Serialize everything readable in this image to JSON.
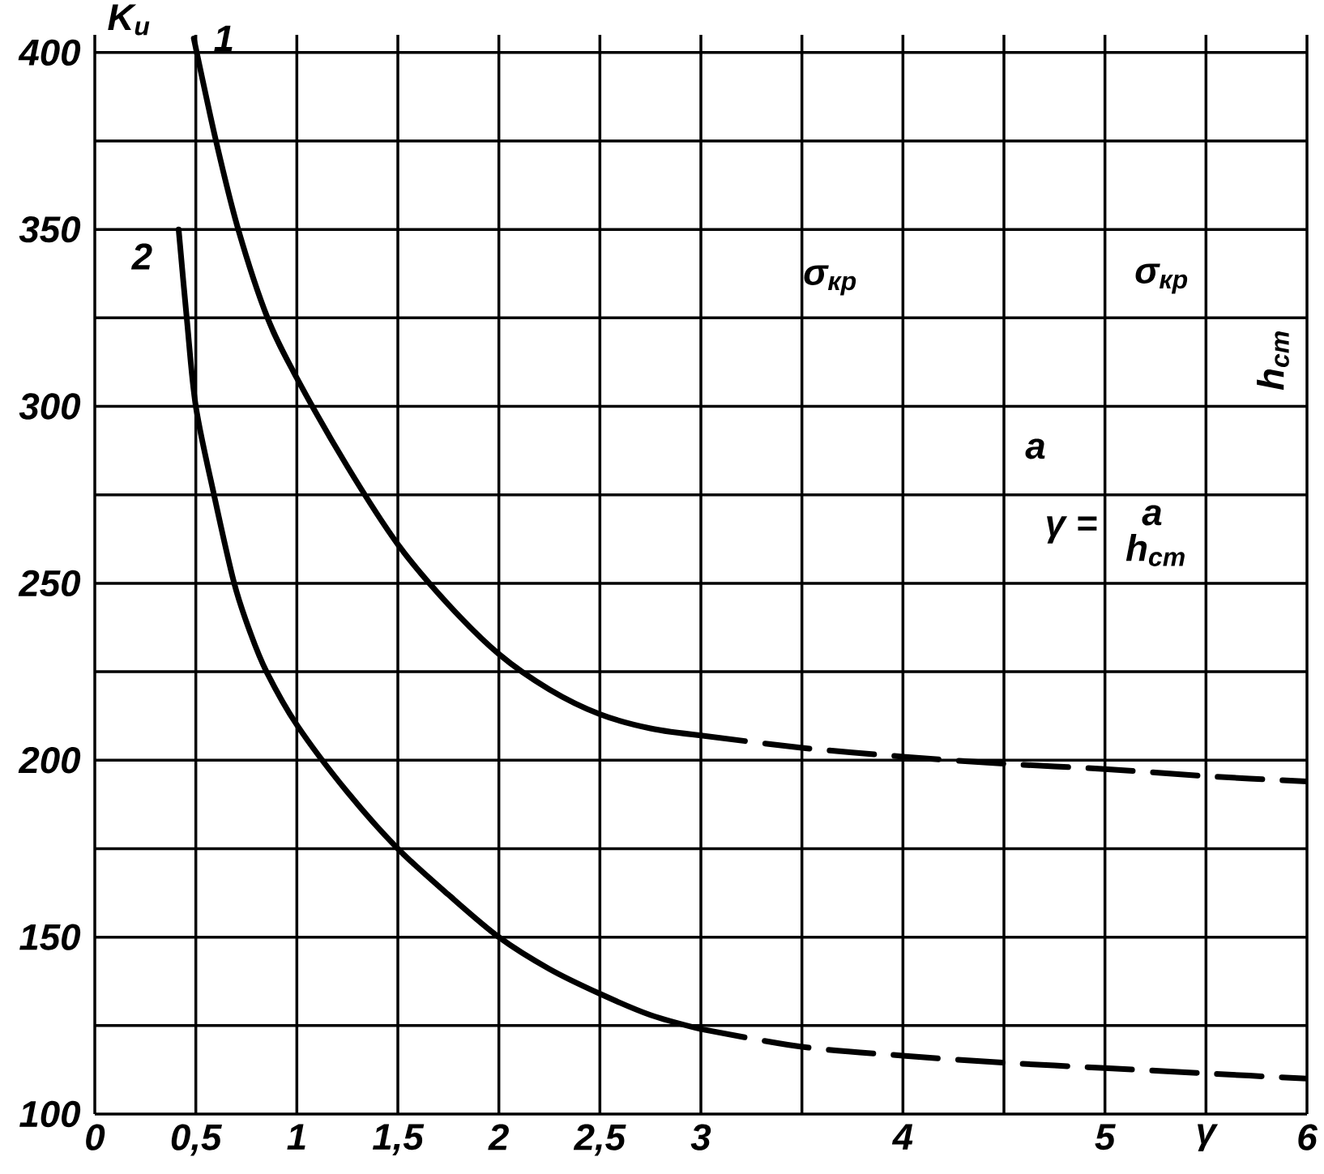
{
  "chart_data": {
    "type": "line",
    "xlabel": "γ",
    "ylabel": "K$_{и}$",
    "xlim": [
      0,
      6
    ],
    "ylim": [
      100,
      405
    ],
    "xticks": [
      0,
      {
        "value": 0.5,
        "label": "0,5"
      },
      1,
      {
        "value": 1.5,
        "label": "1,5"
      },
      2,
      {
        "value": 2.5,
        "label": "2,5"
      },
      3,
      {
        "value": 3.5,
        "label": null
      },
      4,
      {
        "value": 4.5,
        "label": null
      },
      5,
      {
        "value": 5.5,
        "label": null
      },
      6
    ],
    "yticks": [
      100,
      {
        "value": 125,
        "label": null
      },
      150,
      {
        "value": 175,
        "label": null
      },
      200,
      {
        "value": 225,
        "label": null
      },
      250,
      {
        "value": 275,
        "label": null
      },
      300,
      {
        "value": 325,
        "label": null
      },
      350,
      {
        "value": 375,
        "label": null
      },
      400
    ],
    "grid": true,
    "series": [
      {
        "name": "1",
        "color": "#000000",
        "line_style": "solid",
        "x": [
          0.49,
          0.6,
          0.71,
          0.855,
          1.0,
          1.25,
          1.5,
          1.75,
          2.0,
          2.25,
          2.5,
          2.75,
          3.0
        ],
        "values": [
          404,
          375,
          350,
          325,
          308,
          283,
          261,
          244,
          230,
          220,
          213,
          209,
          207
        ]
      },
      {
        "color": "#000000",
        "line_style": "dashed",
        "x": [
          3.0,
          3.5,
          4.0,
          4.5,
          5.0,
          5.5,
          6.0
        ],
        "values": [
          207,
          203.5,
          201,
          199,
          197.5,
          195.5,
          194
        ]
      },
      {
        "name": "2",
        "color": "#000000",
        "line_style": "solid",
        "x": [
          0.415,
          0.455,
          0.5,
          0.59,
          0.69,
          0.77,
          0.85,
          1.0,
          1.25,
          1.5,
          1.75,
          2.0,
          2.25,
          2.5,
          2.75,
          3.0
        ],
        "values": [
          350,
          325,
          300,
          275,
          250,
          236,
          225,
          210,
          191,
          175,
          162,
          150,
          141,
          134,
          128,
          124
        ]
      },
      {
        "color": "#000000",
        "line_style": "dashed",
        "x": [
          3.0,
          3.5,
          4.0,
          4.5,
          5.0,
          5.5,
          6.0
        ],
        "values": [
          124,
          119,
          116.5,
          114.5,
          113,
          111.5,
          110
        ]
      }
    ],
    "annotations": [
      "σ$_{кр}$",
      "σ$_{кр}$",
      "h$_{ст}$",
      "a",
      "γ =",
      "a",
      "h$_{ст}$"
    ]
  }
}
